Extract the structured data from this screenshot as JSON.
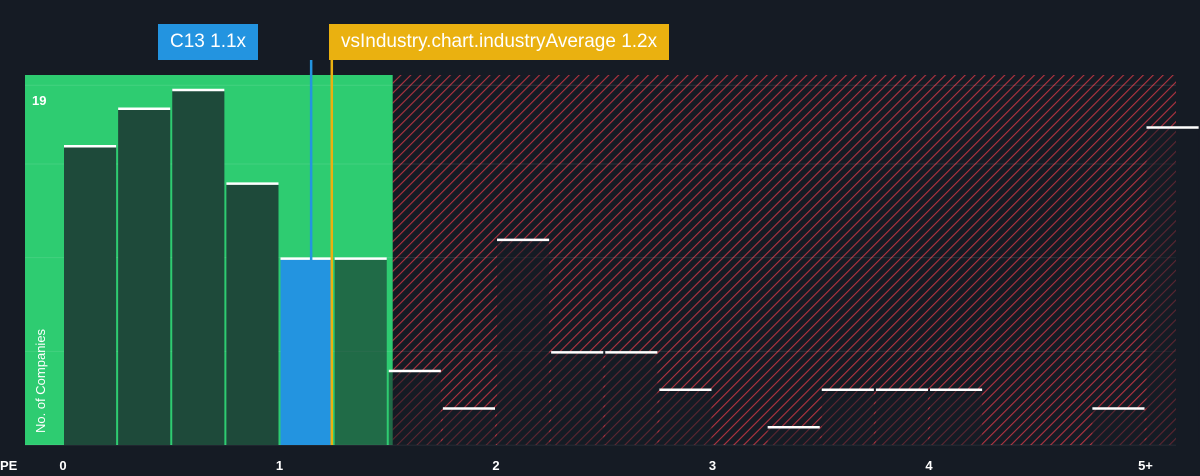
{
  "company_label": "C13 1.1x",
  "industry_label": "vsIndustry.chart.industryAverage 1.2x",
  "colors": {
    "background": "#151b24",
    "undervalued_zone": "#2ecc71",
    "undervalued_bar": "#1e4a3a",
    "company_bar": "#2394e0",
    "industry_marker": "#eab110",
    "overvalued_hatch": "#b23340",
    "bar_cap": "#ffffff"
  },
  "chart_data": {
    "type": "bar",
    "xlabel": "PE",
    "ylabel": "No. of Companies",
    "ymax_label": "19",
    "ylim": [
      0,
      19.5
    ],
    "x_ticks": [
      {
        "label": "0",
        "value": 0
      },
      {
        "label": "1",
        "value": 1
      },
      {
        "label": "2",
        "value": 2
      },
      {
        "label": "3",
        "value": 3
      },
      {
        "label": "4",
        "value": 4
      },
      {
        "label": "5+",
        "value": 5
      }
    ],
    "bins": [
      {
        "start": 0.0,
        "end": 0.25,
        "count": 16
      },
      {
        "start": 0.25,
        "end": 0.5,
        "count": 18
      },
      {
        "start": 0.5,
        "end": 0.75,
        "count": 19
      },
      {
        "start": 0.75,
        "end": 1.0,
        "count": 14
      },
      {
        "start": 1.0,
        "end": 1.25,
        "count": 10
      },
      {
        "start": 1.25,
        "end": 1.5,
        "count": 10
      },
      {
        "start": 1.5,
        "end": 1.75,
        "count": 4
      },
      {
        "start": 1.75,
        "end": 2.0,
        "count": 2
      },
      {
        "start": 2.0,
        "end": 2.25,
        "count": 11
      },
      {
        "start": 2.25,
        "end": 2.5,
        "count": 5
      },
      {
        "start": 2.5,
        "end": 2.75,
        "count": 5
      },
      {
        "start": 2.75,
        "end": 3.0,
        "count": 3
      },
      {
        "start": 3.0,
        "end": 3.25,
        "count": 0
      },
      {
        "start": 3.25,
        "end": 3.5,
        "count": 1
      },
      {
        "start": 3.5,
        "end": 3.75,
        "count": 3
      },
      {
        "start": 3.75,
        "end": 4.0,
        "count": 3
      },
      {
        "start": 4.0,
        "end": 4.25,
        "count": 3
      },
      {
        "start": 4.25,
        "end": 4.5,
        "count": 0
      },
      {
        "start": 4.5,
        "end": 4.75,
        "count": 0
      },
      {
        "start": 4.75,
        "end": 5.0,
        "count": 2
      },
      {
        "start": 5.0,
        "end": 5.25,
        "count": 17
      }
    ],
    "company_value": 1.1,
    "industry_average": 1.2,
    "company_bin_index": 4
  }
}
